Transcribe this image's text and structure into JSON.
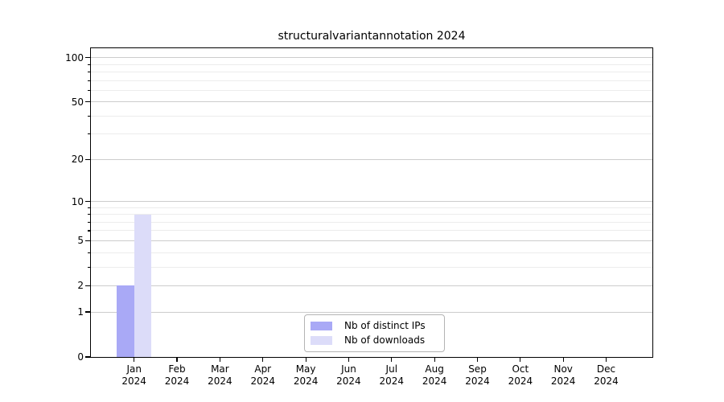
{
  "chart_data": {
    "type": "bar",
    "title": "structuralvariantannotation 2024",
    "categories": [
      "Jan",
      "Feb",
      "Mar",
      "Apr",
      "May",
      "Jun",
      "Jul",
      "Aug",
      "Sep",
      "Oct",
      "Nov",
      "Dec"
    ],
    "category_year_label": "2024",
    "series": [
      {
        "name": "Nb of distinct IPs",
        "color": "#a9a9f6",
        "values": [
          2,
          0,
          0,
          0,
          0,
          0,
          0,
          0,
          0,
          0,
          0,
          0
        ]
      },
      {
        "name": "Nb of downloads",
        "color": "#dcdcf9",
        "values": [
          8,
          0,
          0,
          0,
          0,
          0,
          0,
          0,
          0,
          0,
          0,
          0
        ]
      }
    ],
    "y_axis": {
      "scale": "log1p",
      "major_ticks": [
        100,
        50,
        20,
        10,
        5,
        2,
        1,
        0
      ],
      "minor_gridlines": [
        3,
        4,
        6,
        7,
        8,
        9,
        30,
        40,
        60,
        70,
        80,
        90
      ],
      "ylim": [
        0,
        115.6
      ]
    },
    "legend": {
      "position": "lower-center"
    },
    "grid": true,
    "colors": {
      "major_grid": "#cccccc",
      "minor_grid": "#ececec",
      "axis": "#000000",
      "background": "#ffffff",
      "text": "#000000"
    }
  }
}
